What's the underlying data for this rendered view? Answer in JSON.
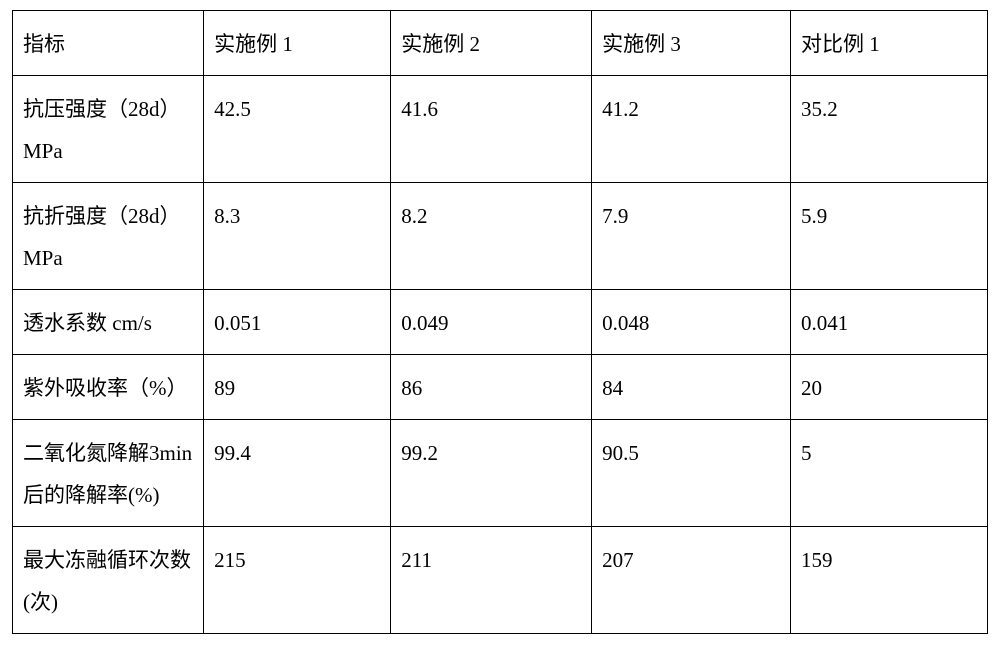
{
  "table": {
    "columns": [
      {
        "label": "指标"
      },
      {
        "label": "实施例 1"
      },
      {
        "label": "实施例 2"
      },
      {
        "label": "实施例 3"
      },
      {
        "label": "对比例 1"
      }
    ],
    "rows": [
      {
        "label": "抗压强度（28d）MPa",
        "v1": "42.5",
        "v2": "41.6",
        "v3": "41.2",
        "v4": "35.2"
      },
      {
        "label": "抗折强度（28d）MPa",
        "v1": "8.3",
        "v2": "8.2",
        "v3": "7.9",
        "v4": "5.9"
      },
      {
        "label": "透水系数 cm/s",
        "v1": "0.051",
        "v2": "0.049",
        "v3": "0.048",
        "v4": "0.041"
      },
      {
        "label": "紫外吸收率（%）",
        "v1": "89",
        "v2": "86",
        "v3": "84",
        "v4": "20"
      },
      {
        "label": "二氧化氮降解3min 后的降解率(%)",
        "v1": "99.4",
        "v2": "99.2",
        "v3": "90.5",
        "v4": "5"
      },
      {
        "label": "最大冻融循环次数(次)",
        "v1": "215",
        "v2": "211",
        "v3": "207",
        "v4": "159"
      }
    ],
    "style": {
      "border_color": "#000000",
      "background_color": "#ffffff",
      "text_color": "#000000",
      "font_family": "SimSun",
      "font_size_pt": 16,
      "line_height": 2.0,
      "cell_align": "left",
      "col_widths_pct": [
        19.6,
        19.2,
        20.6,
        20.4,
        20.2
      ]
    }
  }
}
